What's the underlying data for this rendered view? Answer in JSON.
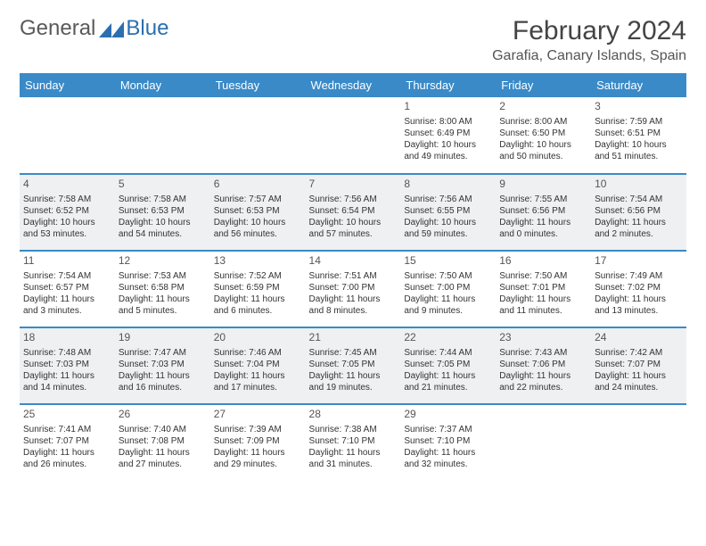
{
  "header": {
    "logo_text_a": "General",
    "logo_text_b": "Blue",
    "title": "February 2024",
    "location": "Garafia, Canary Islands, Spain"
  },
  "styling": {
    "header_bg": "#3a8ac8",
    "header_text": "#ffffff",
    "separator": "#3a8ac8",
    "shaded_row_bg": "#eef0f2",
    "body_text": "#333333",
    "title_color": "#444444",
    "fonts": {
      "title_pt": 30,
      "location_pt": 16,
      "day_header_pt": 13,
      "cell_pt": 10,
      "daynum_pt": 12
    }
  },
  "day_headers": [
    "Sunday",
    "Monday",
    "Tuesday",
    "Wednesday",
    "Thursday",
    "Friday",
    "Saturday"
  ],
  "weeks": [
    [
      {
        "shaded": false
      },
      {
        "shaded": false
      },
      {
        "shaded": false
      },
      {
        "shaded": false
      },
      {
        "shaded": false,
        "num": "1",
        "sunrise": "Sunrise: 8:00 AM",
        "sunset": "Sunset: 6:49 PM",
        "dl1": "Daylight: 10 hours",
        "dl2": "and 49 minutes."
      },
      {
        "shaded": false,
        "num": "2",
        "sunrise": "Sunrise: 8:00 AM",
        "sunset": "Sunset: 6:50 PM",
        "dl1": "Daylight: 10 hours",
        "dl2": "and 50 minutes."
      },
      {
        "shaded": false,
        "num": "3",
        "sunrise": "Sunrise: 7:59 AM",
        "sunset": "Sunset: 6:51 PM",
        "dl1": "Daylight: 10 hours",
        "dl2": "and 51 minutes."
      }
    ],
    [
      {
        "shaded": true,
        "num": "4",
        "sunrise": "Sunrise: 7:58 AM",
        "sunset": "Sunset: 6:52 PM",
        "dl1": "Daylight: 10 hours",
        "dl2": "and 53 minutes."
      },
      {
        "shaded": true,
        "num": "5",
        "sunrise": "Sunrise: 7:58 AM",
        "sunset": "Sunset: 6:53 PM",
        "dl1": "Daylight: 10 hours",
        "dl2": "and 54 minutes."
      },
      {
        "shaded": true,
        "num": "6",
        "sunrise": "Sunrise: 7:57 AM",
        "sunset": "Sunset: 6:53 PM",
        "dl1": "Daylight: 10 hours",
        "dl2": "and 56 minutes."
      },
      {
        "shaded": true,
        "num": "7",
        "sunrise": "Sunrise: 7:56 AM",
        "sunset": "Sunset: 6:54 PM",
        "dl1": "Daylight: 10 hours",
        "dl2": "and 57 minutes."
      },
      {
        "shaded": true,
        "num": "8",
        "sunrise": "Sunrise: 7:56 AM",
        "sunset": "Sunset: 6:55 PM",
        "dl1": "Daylight: 10 hours",
        "dl2": "and 59 minutes."
      },
      {
        "shaded": true,
        "num": "9",
        "sunrise": "Sunrise: 7:55 AM",
        "sunset": "Sunset: 6:56 PM",
        "dl1": "Daylight: 11 hours",
        "dl2": "and 0 minutes."
      },
      {
        "shaded": true,
        "num": "10",
        "sunrise": "Sunrise: 7:54 AM",
        "sunset": "Sunset: 6:56 PM",
        "dl1": "Daylight: 11 hours",
        "dl2": "and 2 minutes."
      }
    ],
    [
      {
        "shaded": false,
        "num": "11",
        "sunrise": "Sunrise: 7:54 AM",
        "sunset": "Sunset: 6:57 PM",
        "dl1": "Daylight: 11 hours",
        "dl2": "and 3 minutes."
      },
      {
        "shaded": false,
        "num": "12",
        "sunrise": "Sunrise: 7:53 AM",
        "sunset": "Sunset: 6:58 PM",
        "dl1": "Daylight: 11 hours",
        "dl2": "and 5 minutes."
      },
      {
        "shaded": false,
        "num": "13",
        "sunrise": "Sunrise: 7:52 AM",
        "sunset": "Sunset: 6:59 PM",
        "dl1": "Daylight: 11 hours",
        "dl2": "and 6 minutes."
      },
      {
        "shaded": false,
        "num": "14",
        "sunrise": "Sunrise: 7:51 AM",
        "sunset": "Sunset: 7:00 PM",
        "dl1": "Daylight: 11 hours",
        "dl2": "and 8 minutes."
      },
      {
        "shaded": false,
        "num": "15",
        "sunrise": "Sunrise: 7:50 AM",
        "sunset": "Sunset: 7:00 PM",
        "dl1": "Daylight: 11 hours",
        "dl2": "and 9 minutes."
      },
      {
        "shaded": false,
        "num": "16",
        "sunrise": "Sunrise: 7:50 AM",
        "sunset": "Sunset: 7:01 PM",
        "dl1": "Daylight: 11 hours",
        "dl2": "and 11 minutes."
      },
      {
        "shaded": false,
        "num": "17",
        "sunrise": "Sunrise: 7:49 AM",
        "sunset": "Sunset: 7:02 PM",
        "dl1": "Daylight: 11 hours",
        "dl2": "and 13 minutes."
      }
    ],
    [
      {
        "shaded": true,
        "num": "18",
        "sunrise": "Sunrise: 7:48 AM",
        "sunset": "Sunset: 7:03 PM",
        "dl1": "Daylight: 11 hours",
        "dl2": "and 14 minutes."
      },
      {
        "shaded": true,
        "num": "19",
        "sunrise": "Sunrise: 7:47 AM",
        "sunset": "Sunset: 7:03 PM",
        "dl1": "Daylight: 11 hours",
        "dl2": "and 16 minutes."
      },
      {
        "shaded": true,
        "num": "20",
        "sunrise": "Sunrise: 7:46 AM",
        "sunset": "Sunset: 7:04 PM",
        "dl1": "Daylight: 11 hours",
        "dl2": "and 17 minutes."
      },
      {
        "shaded": true,
        "num": "21",
        "sunrise": "Sunrise: 7:45 AM",
        "sunset": "Sunset: 7:05 PM",
        "dl1": "Daylight: 11 hours",
        "dl2": "and 19 minutes."
      },
      {
        "shaded": true,
        "num": "22",
        "sunrise": "Sunrise: 7:44 AM",
        "sunset": "Sunset: 7:05 PM",
        "dl1": "Daylight: 11 hours",
        "dl2": "and 21 minutes."
      },
      {
        "shaded": true,
        "num": "23",
        "sunrise": "Sunrise: 7:43 AM",
        "sunset": "Sunset: 7:06 PM",
        "dl1": "Daylight: 11 hours",
        "dl2": "and 22 minutes."
      },
      {
        "shaded": true,
        "num": "24",
        "sunrise": "Sunrise: 7:42 AM",
        "sunset": "Sunset: 7:07 PM",
        "dl1": "Daylight: 11 hours",
        "dl2": "and 24 minutes."
      }
    ],
    [
      {
        "shaded": false,
        "num": "25",
        "sunrise": "Sunrise: 7:41 AM",
        "sunset": "Sunset: 7:07 PM",
        "dl1": "Daylight: 11 hours",
        "dl2": "and 26 minutes."
      },
      {
        "shaded": false,
        "num": "26",
        "sunrise": "Sunrise: 7:40 AM",
        "sunset": "Sunset: 7:08 PM",
        "dl1": "Daylight: 11 hours",
        "dl2": "and 27 minutes."
      },
      {
        "shaded": false,
        "num": "27",
        "sunrise": "Sunrise: 7:39 AM",
        "sunset": "Sunset: 7:09 PM",
        "dl1": "Daylight: 11 hours",
        "dl2": "and 29 minutes."
      },
      {
        "shaded": false,
        "num": "28",
        "sunrise": "Sunrise: 7:38 AM",
        "sunset": "Sunset: 7:10 PM",
        "dl1": "Daylight: 11 hours",
        "dl2": "and 31 minutes."
      },
      {
        "shaded": false,
        "num": "29",
        "sunrise": "Sunrise: 7:37 AM",
        "sunset": "Sunset: 7:10 PM",
        "dl1": "Daylight: 11 hours",
        "dl2": "and 32 minutes."
      },
      {
        "shaded": false
      },
      {
        "shaded": false
      }
    ]
  ]
}
